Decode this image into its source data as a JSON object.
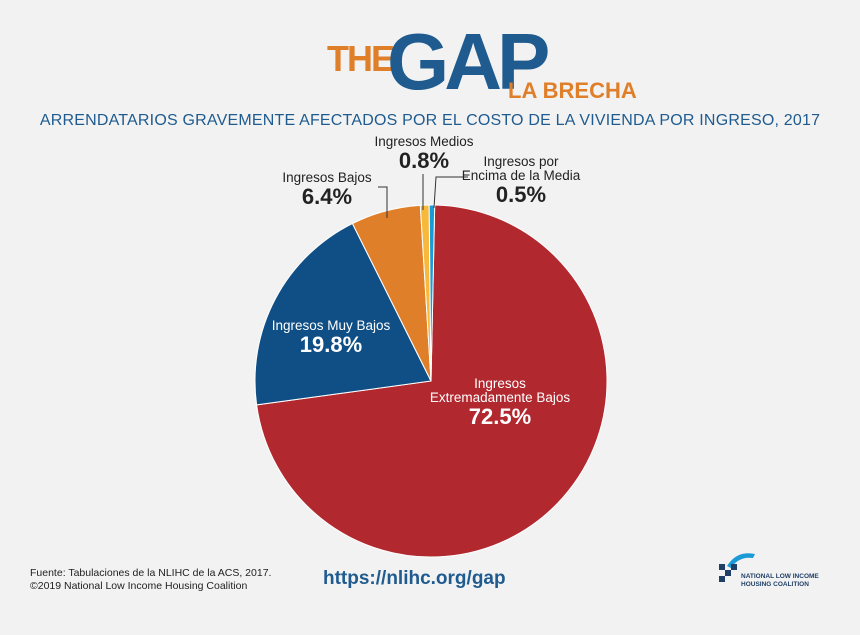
{
  "logo": {
    "the": "THE",
    "gap": "GAP",
    "la_brecha": "LA BRECHA"
  },
  "chart_data": {
    "type": "pie",
    "title": "ARRENDATARIOS GRAVEMENTE AFECTADOS POR EL COSTO DE LA VIVIENDA POR INGRESO, 2017",
    "slices": [
      {
        "label": "Ingresos Extremadamente Bajos",
        "value": 72.5,
        "value_label": "72.5%",
        "color": "#b2282f"
      },
      {
        "label": "Ingresos Muy Bajos",
        "value": 19.8,
        "value_label": "19.8%",
        "color": "#0f4f86"
      },
      {
        "label": "Ingresos Bajos",
        "value": 6.4,
        "value_label": "6.4%",
        "color": "#e07f2a"
      },
      {
        "label": "Ingresos Medios",
        "value": 0.8,
        "value_label": "0.8%",
        "color": "#f6b93b"
      },
      {
        "label": "Ingresos por Encima de la Media",
        "value": 0.5,
        "value_label": "0.5%",
        "color": "#1a9ad6"
      }
    ]
  },
  "footer": {
    "source_line1": "Fuente: Tabulaciones de la NLIHC de la ACS, 2017.",
    "source_line2": "©2019 National Low Income Housing Coalition",
    "url": "https://nlihc.org/gap",
    "org_line1": "NATIONAL LOW INCOME",
    "org_line2": "HOUSING COALITION"
  }
}
